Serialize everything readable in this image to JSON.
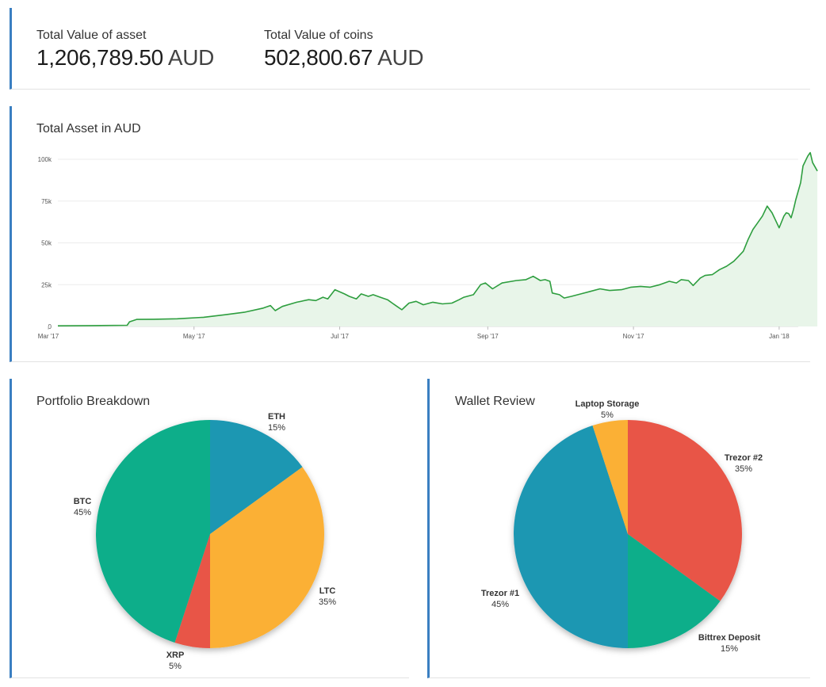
{
  "totals": {
    "asset": {
      "label": "Total Value of asset",
      "value": "1,206,789.50",
      "unit": "AUD"
    },
    "coins": {
      "label": "Total Value of coins",
      "value": "502,800.67",
      "unit": "AUD"
    }
  },
  "colors": {
    "accent": "#3a7fc1",
    "line": "#2e9e3f",
    "area": "#e8f5e9",
    "btc": "#0aae8a",
    "eth": "#1b97b2",
    "ltc": "#fbb034",
    "xrp": "#e85546",
    "trezor1": "#1b97b2",
    "trezor2": "#e85546",
    "bittrex": "#0aae8a",
    "laptop": "#fbb034"
  },
  "chart_data": [
    {
      "type": "area",
      "title": "Total Asset in AUD",
      "xlabel": "",
      "ylabel": "",
      "ylim": [
        0,
        100000
      ],
      "yticks": [
        {
          "value": 0,
          "label": "0"
        },
        {
          "value": 25000,
          "label": "25k"
        },
        {
          "value": 50000,
          "label": "50k"
        },
        {
          "value": 75000,
          "label": "75k"
        },
        {
          "value": 100000,
          "label": "100k"
        }
      ],
      "xticks": [
        {
          "value": "2017-03-01",
          "label": "Mar '17"
        },
        {
          "value": "2017-05-01",
          "label": "May '17"
        },
        {
          "value": "2017-07-01",
          "label": "Jul '17"
        },
        {
          "value": "2017-09-01",
          "label": "Sep '17"
        },
        {
          "value": "2017-11-01",
          "label": "Nov '17"
        },
        {
          "value": "2018-01-01",
          "label": "Jan '18"
        }
      ],
      "xlim": [
        "2017-03-05",
        "2018-01-09"
      ],
      "grid": true,
      "series": [
        {
          "points": [
            [
              "2017-03-05",
              400
            ],
            [
              "2017-03-19",
              500
            ],
            [
              "2017-04-03",
              700
            ],
            [
              "2017-04-04",
              2800
            ],
            [
              "2017-04-07",
              4200
            ],
            [
              "2017-04-14",
              4300
            ],
            [
              "2017-04-24",
              4600
            ],
            [
              "2017-05-05",
              5500
            ],
            [
              "2017-05-14",
              7000
            ],
            [
              "2017-05-22",
              8500
            ],
            [
              "2017-05-30",
              11000
            ],
            [
              "2017-06-02",
              12500
            ],
            [
              "2017-06-04",
              9500
            ],
            [
              "2017-06-07",
              12000
            ],
            [
              "2017-06-13",
              14500
            ],
            [
              "2017-06-18",
              16000
            ],
            [
              "2017-06-21",
              15500
            ],
            [
              "2017-06-24",
              17500
            ],
            [
              "2017-06-26",
              16500
            ],
            [
              "2017-06-29",
              22000
            ],
            [
              "2017-07-03",
              19500
            ],
            [
              "2017-07-05",
              18000
            ],
            [
              "2017-07-08",
              16500
            ],
            [
              "2017-07-10",
              19500
            ],
            [
              "2017-07-13",
              18000
            ],
            [
              "2017-07-15",
              19000
            ],
            [
              "2017-07-18",
              17500
            ],
            [
              "2017-07-21",
              16000
            ],
            [
              "2017-07-23",
              14000
            ],
            [
              "2017-07-25",
              12000
            ],
            [
              "2017-07-27",
              10000
            ],
            [
              "2017-07-30",
              14000
            ],
            [
              "2017-08-02",
              15000
            ],
            [
              "2017-08-05",
              13000
            ],
            [
              "2017-08-09",
              14500
            ],
            [
              "2017-08-13",
              13500
            ],
            [
              "2017-08-17",
              14000
            ],
            [
              "2017-08-20",
              16000
            ],
            [
              "2017-08-22",
              17500
            ],
            [
              "2017-08-26",
              19000
            ],
            [
              "2017-08-29",
              25000
            ],
            [
              "2017-08-31",
              26000
            ],
            [
              "2017-09-03",
              22500
            ],
            [
              "2017-09-07",
              26000
            ],
            [
              "2017-09-13",
              27500
            ],
            [
              "2017-09-17",
              28000
            ],
            [
              "2017-09-20",
              30000
            ],
            [
              "2017-09-23",
              27500
            ],
            [
              "2017-09-25",
              28000
            ],
            [
              "2017-09-27",
              27000
            ],
            [
              "2017-09-28",
              20000
            ],
            [
              "2017-10-01",
              19000
            ],
            [
              "2017-10-03",
              17000
            ],
            [
              "2017-10-06",
              18000
            ],
            [
              "2017-10-10",
              19500
            ],
            [
              "2017-10-14",
              21000
            ],
            [
              "2017-10-18",
              22500
            ],
            [
              "2017-10-22",
              21500
            ],
            [
              "2017-10-27",
              22000
            ],
            [
              "2017-10-31",
              23500
            ],
            [
              "2017-11-04",
              24000
            ],
            [
              "2017-11-08",
              23500
            ],
            [
              "2017-11-12",
              25000
            ],
            [
              "2017-11-16",
              27000
            ],
            [
              "2017-11-19",
              26000
            ],
            [
              "2017-11-21",
              28000
            ],
            [
              "2017-11-24",
              27500
            ],
            [
              "2017-11-26",
              24500
            ],
            [
              "2017-11-29",
              29000
            ],
            [
              "2017-12-01",
              30500
            ],
            [
              "2017-12-04",
              31000
            ],
            [
              "2017-12-07",
              34000
            ],
            [
              "2017-12-10",
              36000
            ],
            [
              "2017-12-13",
              39000
            ],
            [
              "2017-12-15",
              42000
            ],
            [
              "2017-12-17",
              45000
            ],
            [
              "2017-12-19",
              52000
            ],
            [
              "2017-12-21",
              58000
            ],
            [
              "2017-12-23",
              62000
            ],
            [
              "2017-12-25",
              66000
            ],
            [
              "2017-12-27",
              72000
            ],
            [
              "2017-12-29",
              68000
            ],
            [
              "2017-12-31",
              62000
            ],
            [
              "2018-01-01",
              59000
            ],
            [
              "2018-01-03",
              66000
            ],
            [
              "2018-01-04",
              68000
            ],
            [
              "2018-01-05",
              67500
            ],
            [
              "2018-01-06",
              65000
            ],
            [
              "2018-01-07",
              70000
            ],
            [
              "2018-01-08",
              76000
            ],
            [
              "2018-01-10",
              86000
            ],
            [
              "2018-01-11",
              96000
            ],
            [
              "2018-01-13",
              102000
            ],
            [
              "2018-01-14",
              104000
            ],
            [
              "2018-01-15",
              98000
            ],
            [
              "2018-01-17",
              93000
            ]
          ]
        }
      ]
    },
    {
      "type": "pie",
      "title": "Portfolio Breakdown",
      "slices": [
        {
          "label": "ETH",
          "value": 15,
          "text": "15%",
          "color_key": "eth"
        },
        {
          "label": "LTC",
          "value": 35,
          "text": "35%",
          "color_key": "ltc"
        },
        {
          "label": "XRP",
          "value": 5,
          "text": "5%",
          "color_key": "xrp"
        },
        {
          "label": "BTC",
          "value": 45,
          "text": "45%",
          "color_key": "btc"
        }
      ]
    },
    {
      "type": "pie",
      "title": "Wallet Review",
      "slices": [
        {
          "label": "Trezor #2",
          "value": 35,
          "text": "35%",
          "color_key": "trezor2"
        },
        {
          "label": "Bittrex Deposit",
          "value": 15,
          "text": "15%",
          "color_key": "bittrex"
        },
        {
          "label": "Trezor #1",
          "value": 45,
          "text": "45%",
          "color_key": "trezor1"
        },
        {
          "label": "Laptop Storage",
          "value": 5,
          "text": "5%",
          "color_key": "laptop"
        }
      ]
    }
  ]
}
